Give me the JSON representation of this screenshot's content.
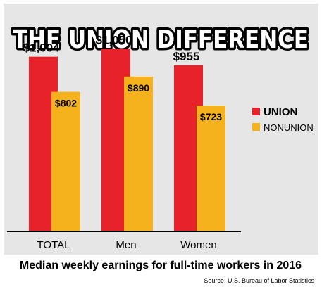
{
  "colors": {
    "background_panel": "#e6e6e6",
    "union": "#e8222a",
    "nonunion": "#f5b21c",
    "axis": "#000000"
  },
  "chart_data": {
    "type": "bar",
    "title": "THE UNION DIFFERENCE",
    "subtitle": "Median weekly earnings for full-time workers in 2016",
    "source": "Source: U.S. Bureau of Labor Statistics",
    "categories": [
      "TOTAL",
      "Men",
      "Women"
    ],
    "series": [
      {
        "name": "UNION",
        "values": [
          1004,
          1050,
          955
        ],
        "labels": [
          "$1,004",
          "$1,050",
          "$955"
        ]
      },
      {
        "name": "NONUNION",
        "values": [
          802,
          890,
          723
        ],
        "labels": [
          "$802",
          "$890",
          "$723"
        ]
      }
    ],
    "xlabel": "",
    "ylabel": "",
    "ylim": [
      0,
      1310
    ],
    "grid": false,
    "legend": "right"
  }
}
